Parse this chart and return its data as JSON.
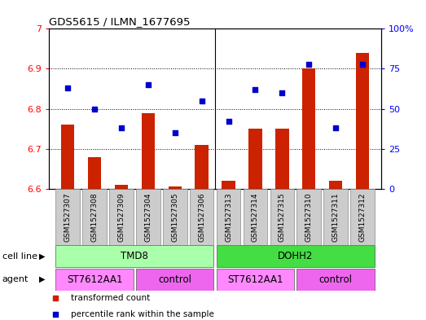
{
  "title": "GDS5615 / ILMN_1677695",
  "samples": [
    "GSM1527307",
    "GSM1527308",
    "GSM1527309",
    "GSM1527304",
    "GSM1527305",
    "GSM1527306",
    "GSM1527313",
    "GSM1527314",
    "GSM1527315",
    "GSM1527310",
    "GSM1527311",
    "GSM1527312"
  ],
  "red_values": [
    6.76,
    6.68,
    6.61,
    6.79,
    6.605,
    6.71,
    6.62,
    6.75,
    6.75,
    6.9,
    6.62,
    6.94
  ],
  "blue_values": [
    63,
    50,
    38,
    65,
    35,
    55,
    42,
    62,
    60,
    78,
    38,
    78
  ],
  "ylim_left": [
    6.6,
    7.0
  ],
  "ylim_right": [
    0,
    100
  ],
  "yticks_left": [
    6.6,
    6.7,
    6.8,
    6.9,
    7.0
  ],
  "ytick_labels_left": [
    "6.6",
    "6.7",
    "6.8",
    "6.9",
    "7"
  ],
  "yticks_right": [
    0,
    25,
    50,
    75,
    100
  ],
  "ytick_labels_right": [
    "0",
    "25",
    "50",
    "75",
    "100%"
  ],
  "grid_lines": [
    6.7,
    6.8,
    6.9
  ],
  "cell_line_groups": [
    {
      "label": "TMD8",
      "start": 0,
      "end": 5,
      "color": "#AAFFAA"
    },
    {
      "label": "DOHH2",
      "start": 6,
      "end": 11,
      "color": "#44DD44"
    }
  ],
  "agent_groups": [
    {
      "label": "ST7612AA1",
      "start": 0,
      "end": 2,
      "color": "#FF88FF"
    },
    {
      "label": "control",
      "start": 3,
      "end": 5,
      "color": "#EE66EE"
    },
    {
      "label": "ST7612AA1",
      "start": 6,
      "end": 8,
      "color": "#FF88FF"
    },
    {
      "label": "control",
      "start": 9,
      "end": 11,
      "color": "#EE66EE"
    }
  ],
  "bar_color": "#CC2200",
  "dot_color": "#0000CC",
  "bar_width": 0.5,
  "sample_box_color": "#CCCCCC",
  "legend_bar_label": "transformed count",
  "legend_dot_label": "percentile rank within the sample",
  "cell_line_label": "cell line",
  "agent_label": "agent"
}
